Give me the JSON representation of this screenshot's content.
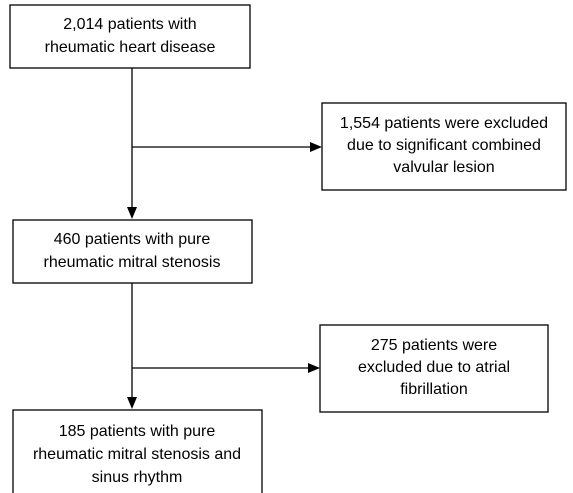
{
  "nodes": [
    {
      "lines": [
        "2,014 patients with",
        "rheumatic heart disease"
      ]
    },
    {
      "lines": [
        "1,554 patients were excluded",
        "due to significant combined",
        "valvular lesion"
      ]
    },
    {
      "lines": [
        "460 patients with pure",
        "rheumatic mitral stenosis"
      ]
    },
    {
      "lines": [
        "275 patients were",
        "excluded due to atrial",
        "fibrillation"
      ]
    },
    {
      "lines": [
        "185 patients with pure",
        "rheumatic mitral stenosis and",
        "sinus rhythm"
      ]
    }
  ]
}
